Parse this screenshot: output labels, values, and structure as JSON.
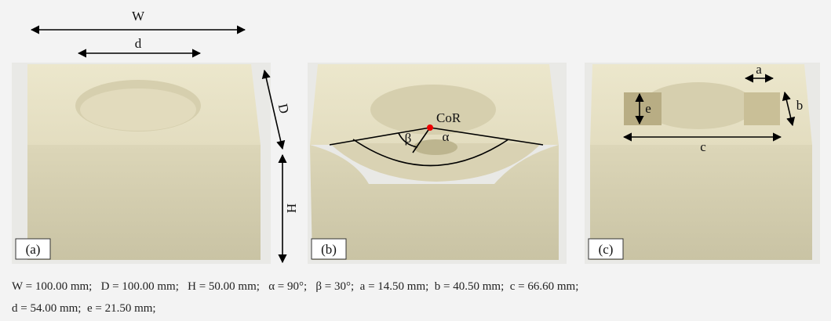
{
  "figure": {
    "panels": [
      {
        "label": "(a)",
        "annotations": {
          "W": "W",
          "d": "d",
          "D": "D",
          "H": "H"
        }
      },
      {
        "label": "(b)",
        "annotations": {
          "cor": "CoR",
          "beta": "β",
          "alpha": "α"
        }
      },
      {
        "label": "(c)",
        "annotations": {
          "a": "a",
          "b": "b",
          "c": "c",
          "e": "e"
        }
      }
    ],
    "caption": {
      "lines": [
        "W = 100.00 mm;   D = 100.00 mm;   H = 50.00 mm;   α = 90°;   β = 30°;  a = 14.50 mm;  b = 40.50 mm;  c = 66.60 mm;",
        "d = 54.00 mm;  e = 21.50 mm;"
      ]
    }
  }
}
